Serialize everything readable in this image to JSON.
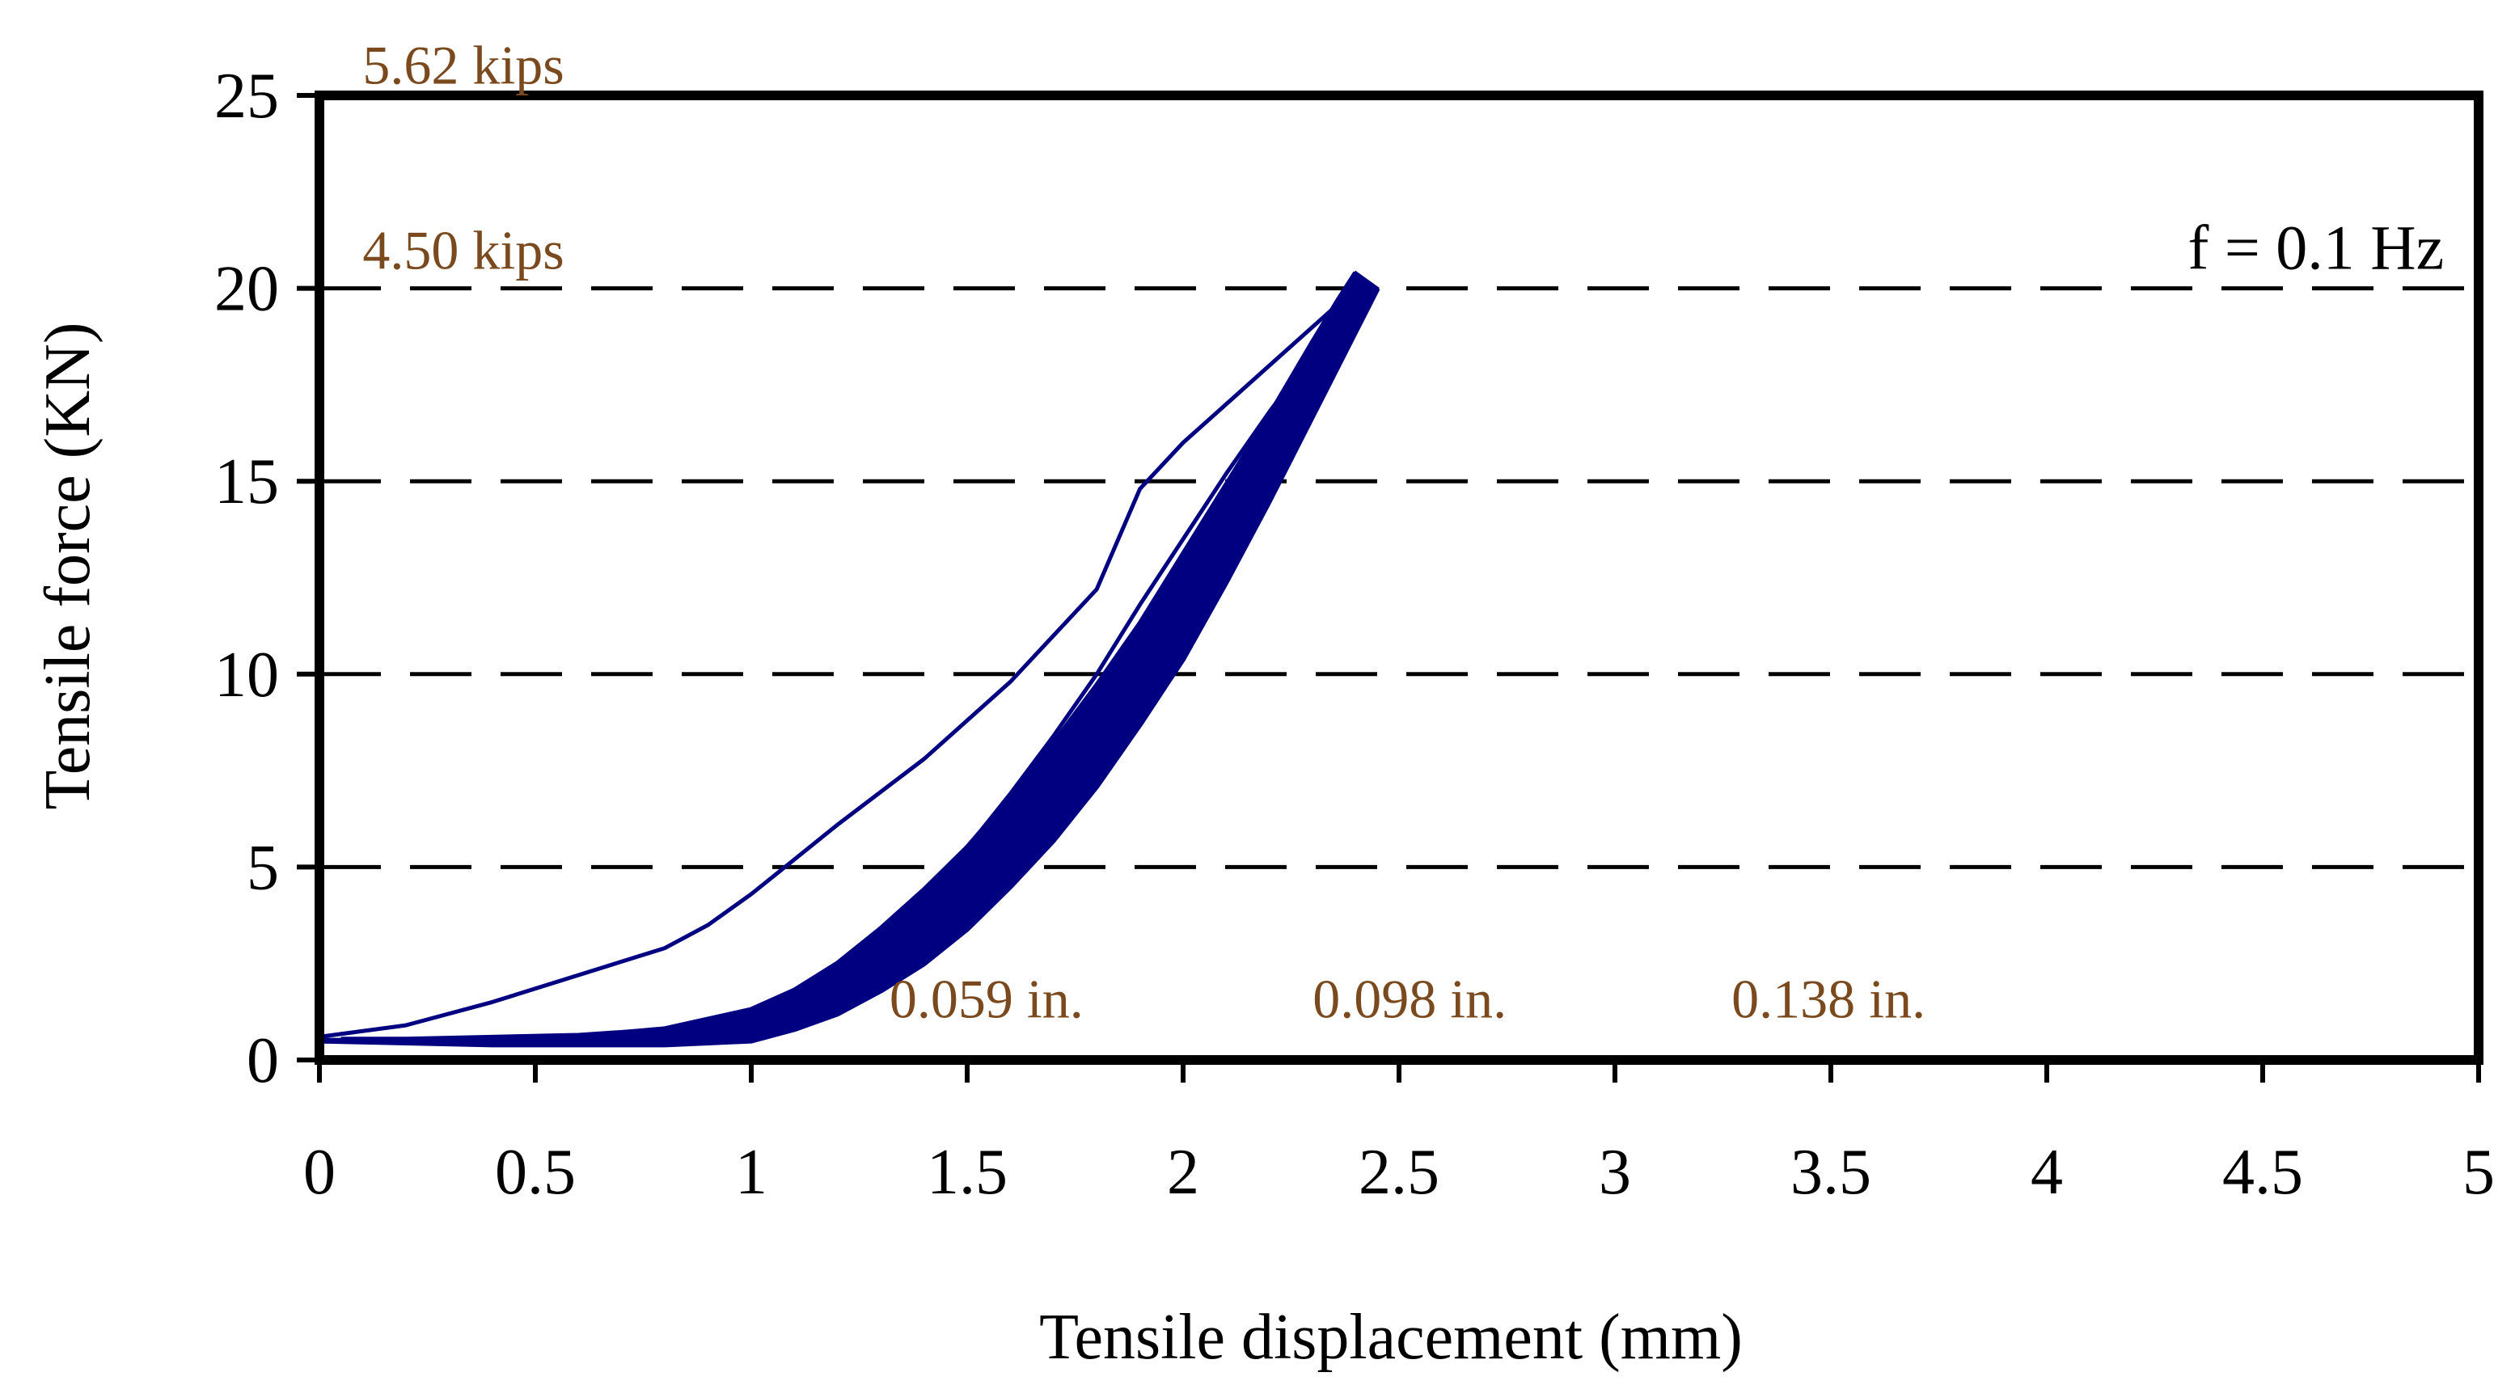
{
  "chart_data": {
    "type": "line",
    "xlabel": "Tensile displacement (mm)",
    "ylabel": "Tensile force (KN)",
    "xlim": [
      0,
      5
    ],
    "ylim": [
      0,
      25
    ],
    "x_ticks": [
      0,
      0.5,
      1,
      1.5,
      2,
      2.5,
      3,
      3.5,
      4,
      4.5,
      5
    ],
    "x_tick_labels": [
      "0",
      "0.5",
      "1",
      "1.5",
      "2",
      "2.5",
      "3",
      "3.5",
      "4",
      "4.5",
      "5"
    ],
    "y_ticks": [
      0,
      5,
      10,
      15,
      20,
      25
    ],
    "y_tick_labels": [
      "0",
      "5",
      "10",
      "15",
      "20",
      "25"
    ],
    "grid": {
      "horizontal": "dashed",
      "vertical": false
    },
    "legend": null,
    "series_color": "#000080",
    "annotations": [
      {
        "text": "5.62 kips",
        "x": 0.1,
        "y": 25.3,
        "color": "#7a4a1e"
      },
      {
        "text": "4.50 kips",
        "x": 0.1,
        "y": 20.5,
        "color": "#7a4a1e"
      },
      {
        "text": "f = 0.1 Hz",
        "x": 4.92,
        "y": 20.5,
        "color": "#000000",
        "anchor": "end"
      },
      {
        "text": "0.059 in.",
        "x": 1.32,
        "y": 1.1,
        "color": "#7a4a1e"
      },
      {
        "text": "0.098 in.",
        "x": 2.3,
        "y": 1.1,
        "color": "#7a4a1e"
      },
      {
        "text": "0.138 in.",
        "x": 3.27,
        "y": 1.1,
        "color": "#7a4a1e"
      }
    ],
    "series": [
      {
        "role": "first-loading-cycle",
        "x": [
          0,
          0.2,
          0.4,
          0.6,
          0.8,
          0.9,
          1.0,
          1.1,
          1.2,
          1.4,
          1.6,
          1.8,
          1.9,
          2.0,
          2.1,
          2.2,
          2.3,
          2.37,
          2.4
        ],
        "y": [
          0.6,
          0.9,
          1.5,
          2.2,
          2.9,
          3.5,
          4.3,
          5.2,
          6.1,
          7.8,
          9.8,
          12.2,
          14.8,
          16.0,
          17.0,
          18.0,
          19.0,
          19.7,
          20.3
        ]
      },
      {
        "role": "first-unloading-cycle",
        "x": [
          2.4,
          2.3,
          2.2,
          2.1,
          2.0,
          1.9,
          1.8,
          1.7,
          1.6,
          1.5,
          1.4,
          1.3,
          1.2,
          1.1,
          1.0,
          0.9,
          0.8,
          0.6,
          0.4,
          0.2,
          0.05
        ],
        "y": [
          20.3,
          18.3,
          16.8,
          15.2,
          13.5,
          11.8,
          10.0,
          8.4,
          6.9,
          5.5,
          4.3,
          3.2,
          2.4,
          1.8,
          1.3,
          1.0,
          0.8,
          0.65,
          0.6,
          0.55,
          0.55
        ]
      },
      {
        "role": "repeated-cycles-upper-envelope",
        "x": [
          0.0,
          0.3,
          0.6,
          0.8,
          1.0,
          1.1,
          1.2,
          1.3,
          1.4,
          1.5,
          1.6,
          1.7,
          1.8,
          1.9,
          2.0,
          2.1,
          2.2,
          2.3,
          2.36,
          2.4
        ],
        "y": [
          0.5,
          0.5,
          0.6,
          0.8,
          1.3,
          1.8,
          2.5,
          3.4,
          4.4,
          5.5,
          6.8,
          8.2,
          9.7,
          11.3,
          13.1,
          14.9,
          16.7,
          18.6,
          19.7,
          20.4
        ]
      },
      {
        "role": "repeated-cycles-lower-envelope",
        "x": [
          2.45,
          2.4,
          2.3,
          2.2,
          2.1,
          2.0,
          1.9,
          1.8,
          1.7,
          1.6,
          1.5,
          1.4,
          1.3,
          1.2,
          1.1,
          1.0,
          0.9,
          0.8,
          0.6,
          0.4,
          0.0
        ],
        "y": [
          20.0,
          18.9,
          16.7,
          14.5,
          12.4,
          10.4,
          8.7,
          7.1,
          5.7,
          4.5,
          3.4,
          2.5,
          1.8,
          1.2,
          0.8,
          0.5,
          0.45,
          0.4,
          0.4,
          0.4,
          0.5
        ]
      }
    ]
  }
}
